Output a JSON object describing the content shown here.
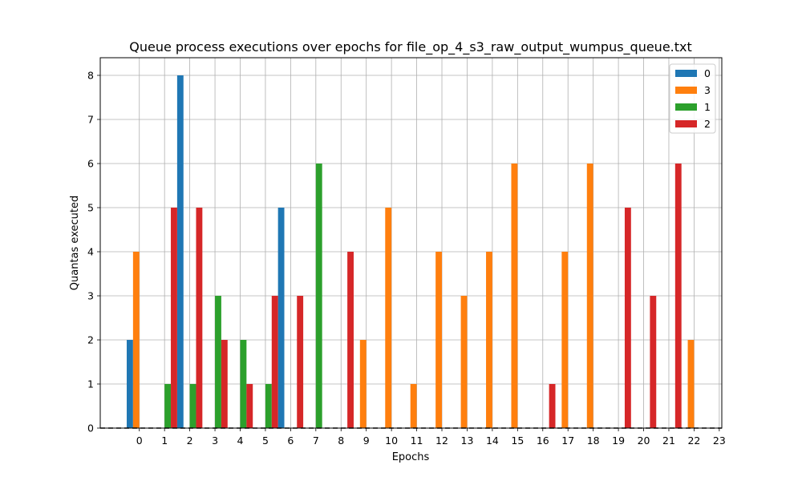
{
  "chart_data": {
    "type": "bar",
    "title": "Queue process executions over epochs for file_op_4_s3_raw_output_wumpus_queue.txt",
    "xlabel": "Epochs",
    "ylabel": "Quantas executed",
    "x_ticks": [
      "0",
      "1",
      "2",
      "3",
      "4",
      "5",
      "6",
      "7",
      "8",
      "9",
      "10",
      "11",
      "12",
      "13",
      "14",
      "15",
      "16",
      "17",
      "18",
      "19",
      "20",
      "21",
      "22",
      "23"
    ],
    "y_ticks": [
      "0",
      "1",
      "2",
      "3",
      "4",
      "5",
      "6",
      "7",
      "8"
    ],
    "ylim": [
      0,
      8.4
    ],
    "xlim": [
      -1.55,
      23.1
    ],
    "grid": true,
    "legend_position": "top-right",
    "bar_width": 0.25,
    "series": [
      {
        "name": "0",
        "color": "#1f77b4",
        "offset": -0.375,
        "points": [
          [
            0,
            2
          ],
          [
            2,
            8
          ],
          [
            6,
            5
          ]
        ]
      },
      {
        "name": "3",
        "color": "#ff7f0e",
        "offset": -0.125,
        "points": [
          [
            0,
            4
          ],
          [
            9,
            2
          ],
          [
            10,
            5
          ],
          [
            11,
            1
          ],
          [
            12,
            4
          ],
          [
            13,
            3
          ],
          [
            14,
            4
          ],
          [
            15,
            6
          ],
          [
            17,
            4
          ],
          [
            18,
            6
          ],
          [
            22,
            2
          ]
        ]
      },
      {
        "name": "1",
        "color": "#2ca02c",
        "offset": 0.125,
        "points": [
          [
            1,
            1
          ],
          [
            2,
            1
          ],
          [
            3,
            3
          ],
          [
            4,
            2
          ],
          [
            5,
            1
          ],
          [
            7,
            6
          ]
        ]
      },
      {
        "name": "2",
        "color": "#d62728",
        "offset": 0.375,
        "points": [
          [
            1,
            5
          ],
          [
            2,
            5
          ],
          [
            3,
            2
          ],
          [
            4,
            1
          ],
          [
            5,
            3
          ],
          [
            6,
            3
          ],
          [
            8,
            4
          ],
          [
            16,
            1
          ],
          [
            19,
            5
          ],
          [
            20,
            3
          ],
          [
            21,
            6
          ]
        ]
      }
    ],
    "baseline_style": "dashed"
  }
}
